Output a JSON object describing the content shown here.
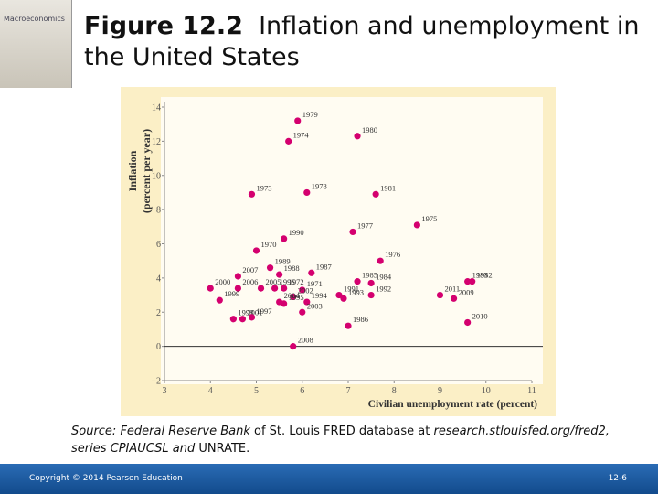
{
  "cover_title": "Macroeconomics",
  "chart_data": {
    "type": "scatter",
    "figure_label": "Figure 12.2",
    "title": "Inflation and unemployment in the United States",
    "ylabel": [
      "Inflation",
      "(percent per year)"
    ],
    "xlabel": "Civilian unemployment rate (percent)",
    "xlim": [
      3,
      11
    ],
    "ylim": [
      -2,
      14
    ],
    "xticks": [
      3,
      4,
      5,
      6,
      7,
      8,
      9,
      10,
      11
    ],
    "yticks": [
      {
        "value": -2,
        "label": "−2"
      },
      0,
      2,
      4,
      6,
      8,
      10,
      12,
      14
    ],
    "color": "#d4006f",
    "series": [
      {
        "labels": [
          "1979",
          "1980",
          "1974",
          "1973",
          "1978",
          "1981",
          "1977",
          "1975",
          "1990",
          "1970",
          "1989",
          "1988",
          "1976",
          "1987",
          "2007",
          "1985",
          "1984",
          "1996",
          "1972",
          "1983",
          "1982",
          "2000",
          "2006",
          "1971",
          "1991",
          "2005",
          "2002",
          "1999",
          "1994",
          "1992",
          "1993",
          "2011",
          "2009",
          "2004",
          "1995",
          "2003",
          "1998",
          "2001",
          "1997",
          "1986",
          "2010",
          "2008"
        ],
        "x": [
          5.9,
          7.2,
          5.7,
          4.9,
          6.1,
          7.6,
          7.1,
          8.5,
          5.6,
          5.0,
          5.3,
          5.5,
          7.7,
          6.2,
          4.6,
          7.2,
          7.5,
          5.4,
          5.6,
          9.6,
          9.7,
          4.0,
          4.6,
          6.0,
          6.8,
          5.1,
          5.8,
          4.2,
          6.1,
          7.5,
          6.9,
          9.0,
          9.3,
          5.5,
          5.6,
          6.0,
          4.5,
          4.7,
          4.9,
          7.0,
          9.6,
          5.8
        ],
        "y": [
          13.2,
          12.3,
          12.0,
          8.9,
          9.0,
          8.9,
          6.7,
          7.1,
          6.3,
          5.6,
          4.6,
          4.2,
          5.0,
          4.3,
          4.1,
          3.8,
          3.7,
          3.4,
          3.4,
          3.8,
          3.8,
          3.4,
          3.4,
          3.3,
          3.0,
          3.4,
          2.9,
          2.7,
          2.6,
          3.0,
          2.8,
          3.0,
          2.8,
          2.6,
          2.5,
          2.0,
          1.6,
          1.6,
          1.7,
          1.2,
          1.4,
          0.0
        ]
      }
    ],
    "source": [
      {
        "text": "Source: Federal Reserve Bank",
        "italic": true
      },
      {
        "text": " of St. Louis FRED database at ",
        "italic": false
      },
      {
        "text": "research.stlouisfed.org/fred2,",
        "italic": true
      },
      {
        "text": "series CPIAUCSL",
        "italic": true,
        "newline": true
      },
      {
        "text": " and",
        "italic": true
      },
      {
        "text": " UNRATE.",
        "italic": false
      }
    ]
  },
  "footer": {
    "copyright": "Copyright © 2014 Pearson Education",
    "page": "12-6"
  }
}
